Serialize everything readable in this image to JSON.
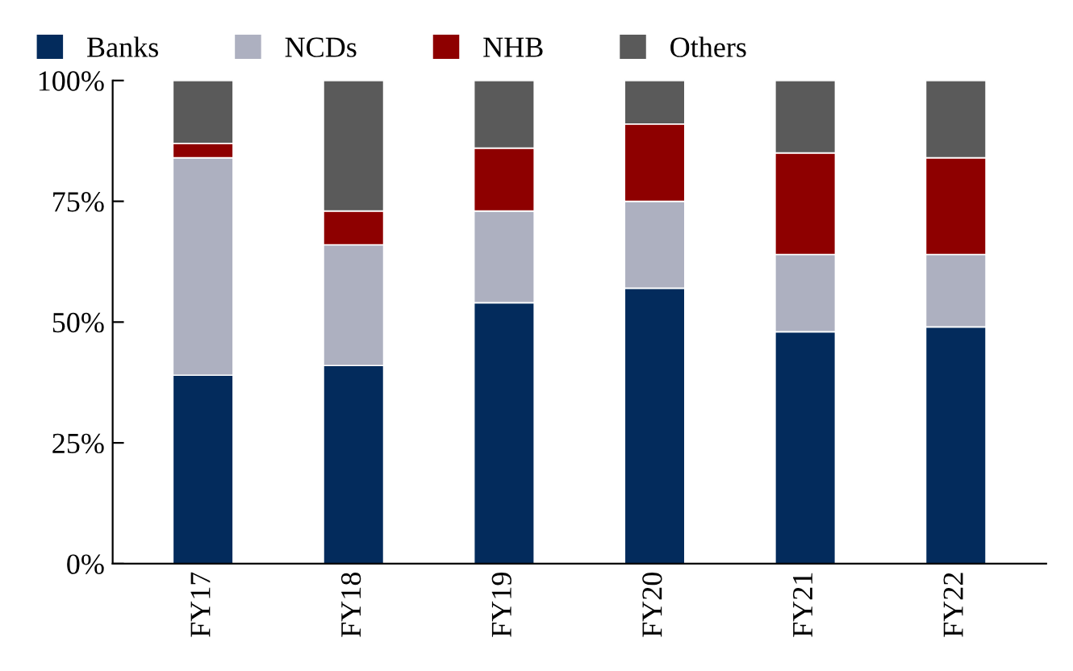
{
  "chart_data": {
    "type": "bar",
    "stacked": true,
    "categories": [
      "FY17",
      "FY18",
      "FY19",
      "FY20",
      "FY21",
      "FY22"
    ],
    "series": [
      {
        "name": "Banks",
        "color": "#032b5c",
        "values": [
          39,
          41,
          54,
          57,
          48,
          49
        ]
      },
      {
        "name": "NCDs",
        "color": "#adb0c0",
        "values": [
          45,
          25,
          19,
          18,
          16,
          15
        ]
      },
      {
        "name": "NHB",
        "color": "#8e0000",
        "values": [
          3,
          7,
          13,
          16,
          21,
          20
        ]
      },
      {
        "name": "Others",
        "color": "#5a5a5a",
        "values": [
          13,
          27,
          14,
          9,
          15,
          16
        ]
      }
    ],
    "ylim": [
      0,
      100
    ],
    "yticks": [
      {
        "value": 0,
        "label": "0%"
      },
      {
        "value": 25,
        "label": "25%"
      },
      {
        "value": 50,
        "label": "50%"
      },
      {
        "value": 75,
        "label": "75%"
      },
      {
        "value": 100,
        "label": "100%"
      }
    ],
    "legend": "top",
    "grid": false
  }
}
